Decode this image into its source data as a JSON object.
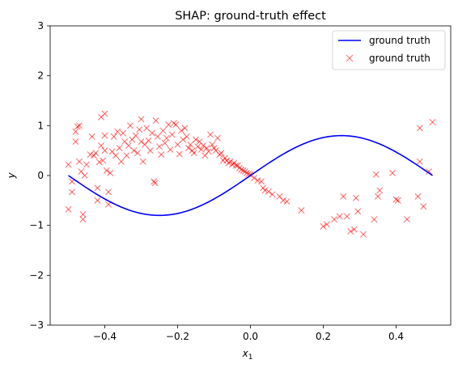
{
  "chart_data": {
    "type": "scatter",
    "title": "SHAP: ground-truth effect",
    "xlabel_main": "x",
    "xlabel_sub": "1",
    "ylabel": "y",
    "xlim": [
      -0.55,
      0.55
    ],
    "ylim": [
      -3,
      3
    ],
    "xticks": [
      -0.4,
      -0.2,
      0.0,
      0.2,
      0.4
    ],
    "xtick_labels": [
      "−0.4",
      "−0.2",
      "0.0",
      "0.2",
      "0.4"
    ],
    "yticks": [
      -3,
      -2,
      -1,
      0,
      1,
      2,
      3
    ],
    "ytick_labels": [
      "−3",
      "−2",
      "−1",
      "0",
      "1",
      "2",
      "3"
    ],
    "grid": false,
    "legend_position": "top-right",
    "series": [
      {
        "name": "ground truth",
        "kind": "line",
        "color": "#0000ff",
        "function": "0.8*sin(2*pi*x)",
        "x_range": [
          -0.5,
          0.5
        ]
      },
      {
        "name": "ground truth",
        "kind": "scatter",
        "marker": "x",
        "color": "#ff0000",
        "opacity": 0.55,
        "points": [
          [
            -0.5,
            -0.68
          ],
          [
            -0.5,
            0.22
          ],
          [
            -0.49,
            -0.33
          ],
          [
            -0.49,
            -0.12
          ],
          [
            -0.48,
            0.68
          ],
          [
            -0.48,
            0.88
          ],
          [
            -0.475,
            0.98
          ],
          [
            -0.47,
            1.0
          ],
          [
            -0.47,
            0.28
          ],
          [
            -0.465,
            0.08
          ],
          [
            -0.46,
            -0.78
          ],
          [
            -0.46,
            -0.88
          ],
          [
            -0.455,
            0.0
          ],
          [
            -0.45,
            0.22
          ],
          [
            -0.44,
            0.42
          ],
          [
            -0.435,
            0.78
          ],
          [
            -0.43,
            0.4
          ],
          [
            -0.425,
            0.45
          ],
          [
            -0.42,
            -0.25
          ],
          [
            -0.42,
            -0.5
          ],
          [
            -0.415,
            0.27
          ],
          [
            -0.41,
            0.6
          ],
          [
            -0.41,
            1.17
          ],
          [
            -0.405,
            0.3
          ],
          [
            -0.4,
            1.24
          ],
          [
            -0.4,
            0.8
          ],
          [
            -0.4,
            0.5
          ],
          [
            -0.395,
            0.1
          ],
          [
            -0.39,
            -0.33
          ],
          [
            -0.39,
            -0.58
          ],
          [
            -0.385,
            0.05
          ],
          [
            -0.38,
            0.48
          ],
          [
            -0.375,
            0.78
          ],
          [
            -0.37,
            0.4
          ],
          [
            -0.365,
            0.88
          ],
          [
            -0.36,
            0.55
          ],
          [
            -0.355,
            0.28
          ],
          [
            -0.35,
            0.85
          ],
          [
            -0.345,
            0.68
          ],
          [
            -0.34,
            0.4
          ],
          [
            -0.335,
            0.6
          ],
          [
            -0.33,
            1.0
          ],
          [
            -0.325,
            0.72
          ],
          [
            -0.32,
            0.5
          ],
          [
            -0.315,
            0.8
          ],
          [
            -0.31,
            0.45
          ],
          [
            -0.305,
            0.92
          ],
          [
            -0.3,
            0.68
          ],
          [
            -0.3,
            1.13
          ],
          [
            -0.295,
            0.28
          ],
          [
            -0.29,
            0.62
          ],
          [
            -0.285,
            0.95
          ],
          [
            -0.28,
            0.7
          ],
          [
            -0.275,
            0.5
          ],
          [
            -0.27,
            0.85
          ],
          [
            -0.265,
            -0.12
          ],
          [
            -0.262,
            -0.15
          ],
          [
            -0.26,
            1.1
          ],
          [
            -0.255,
            0.78
          ],
          [
            -0.25,
            0.58
          ],
          [
            -0.245,
            0.42
          ],
          [
            -0.24,
            0.9
          ],
          [
            -0.235,
            0.65
          ],
          [
            -0.23,
            0.75
          ],
          [
            -0.225,
            1.02
          ],
          [
            -0.22,
            0.52
          ],
          [
            -0.215,
            0.82
          ],
          [
            -0.21,
            1.05
          ],
          [
            -0.205,
            1.02
          ],
          [
            -0.2,
            0.62
          ],
          [
            -0.195,
            0.43
          ],
          [
            -0.19,
            0.9
          ],
          [
            -0.185,
            0.72
          ],
          [
            -0.18,
            0.95
          ],
          [
            -0.175,
            0.78
          ],
          [
            -0.17,
            0.55
          ],
          [
            -0.165,
            0.62
          ],
          [
            -0.16,
            0.5
          ],
          [
            -0.155,
            0.45
          ],
          [
            -0.15,
            0.72
          ],
          [
            -0.145,
            0.58
          ],
          [
            -0.14,
            0.68
          ],
          [
            -0.135,
            0.52
          ],
          [
            -0.13,
            0.6
          ],
          [
            -0.125,
            0.4
          ],
          [
            -0.12,
            0.55
          ],
          [
            -0.115,
            0.48
          ],
          [
            -0.11,
            0.82
          ],
          [
            -0.105,
            0.62
          ],
          [
            -0.1,
            0.55
          ],
          [
            -0.095,
            0.5
          ],
          [
            -0.09,
            0.75
          ],
          [
            -0.085,
            0.42
          ],
          [
            -0.08,
            0.45
          ],
          [
            -0.075,
            0.3
          ],
          [
            -0.07,
            0.35
          ],
          [
            -0.065,
            0.3
          ],
          [
            -0.06,
            0.25
          ],
          [
            -0.055,
            0.28
          ],
          [
            -0.05,
            0.22
          ],
          [
            -0.045,
            0.25
          ],
          [
            -0.04,
            0.2
          ],
          [
            -0.035,
            0.2
          ],
          [
            -0.03,
            0.15
          ],
          [
            -0.025,
            0.12
          ],
          [
            -0.02,
            0.1
          ],
          [
            -0.015,
            0.08
          ],
          [
            -0.01,
            0.05
          ],
          [
            -0.005,
            0.03
          ],
          [
            0.0,
            0.02
          ],
          [
            0.01,
            -0.05
          ],
          [
            0.02,
            -0.1
          ],
          [
            0.03,
            -0.12
          ],
          [
            0.035,
            -0.25
          ],
          [
            0.04,
            -0.3
          ],
          [
            0.05,
            -0.32
          ],
          [
            0.06,
            -0.38
          ],
          [
            0.08,
            -0.42
          ],
          [
            0.09,
            -0.5
          ],
          [
            0.1,
            -0.52
          ],
          [
            0.14,
            -0.7
          ],
          [
            0.2,
            -1.02
          ],
          [
            0.21,
            -0.98
          ],
          [
            0.23,
            -0.88
          ],
          [
            0.245,
            -0.82
          ],
          [
            0.255,
            -0.42
          ],
          [
            0.265,
            -0.82
          ],
          [
            0.275,
            -1.12
          ],
          [
            0.285,
            -1.08
          ],
          [
            0.29,
            -0.45
          ],
          [
            0.295,
            -0.72
          ],
          [
            0.31,
            -1.18
          ],
          [
            0.34,
            -0.88
          ],
          [
            0.345,
            0.02
          ],
          [
            0.35,
            -0.42
          ],
          [
            0.355,
            -0.3
          ],
          [
            0.39,
            0.05
          ],
          [
            0.4,
            -0.48
          ],
          [
            0.405,
            -0.5
          ],
          [
            0.43,
            -0.88
          ],
          [
            0.46,
            -0.42
          ],
          [
            0.465,
            0.28
          ],
          [
            0.465,
            0.95
          ],
          [
            0.475,
            -0.62
          ],
          [
            0.49,
            0.08
          ],
          [
            0.5,
            1.07
          ]
        ]
      }
    ]
  }
}
